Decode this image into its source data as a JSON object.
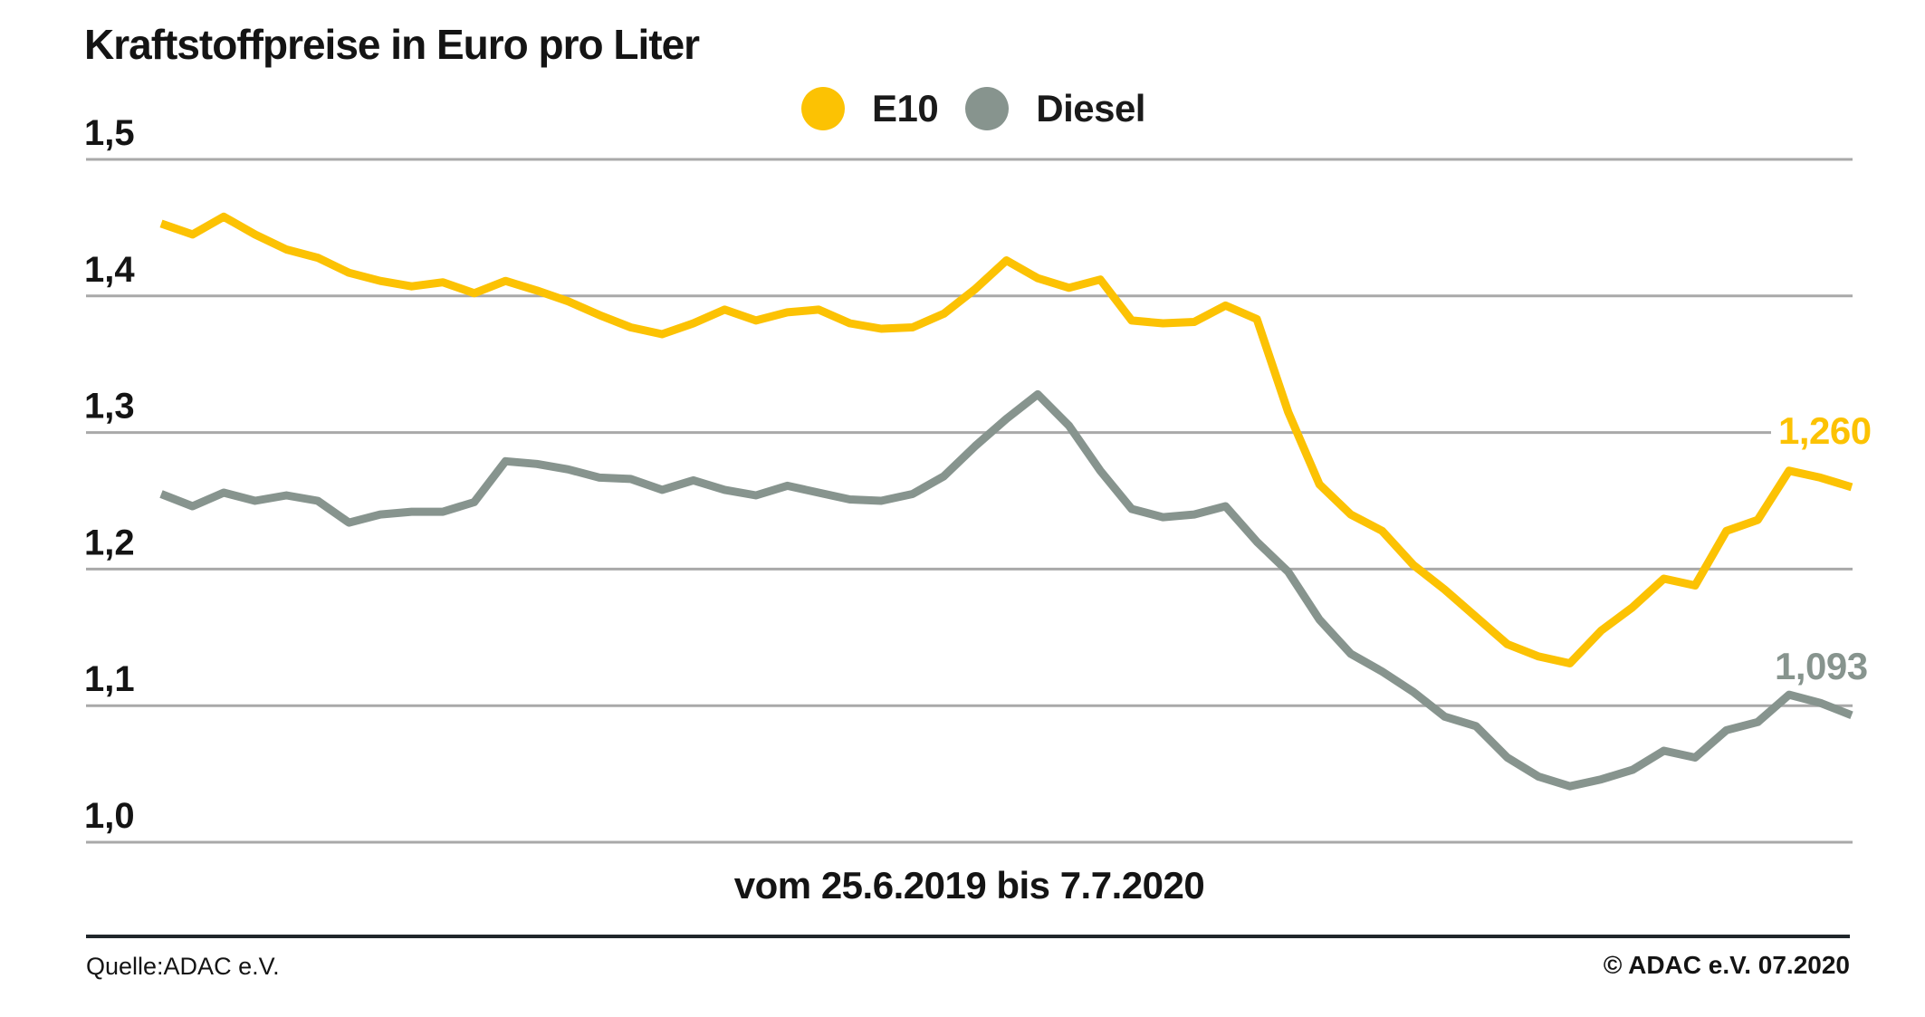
{
  "title": "Kraftstoffpreise in Euro pro Liter",
  "legend": {
    "items": [
      {
        "label": "E10",
        "color": "#FCC203"
      },
      {
        "label": "Diesel",
        "color": "#87948E"
      }
    ]
  },
  "colors": {
    "e10": "#FCC203",
    "diesel": "#87948E",
    "gridline": "#A9A9A9",
    "text": "#141414",
    "footer_rule": "#20262A"
  },
  "chart_data": {
    "type": "line",
    "title": "Kraftstoffpreise in Euro pro Liter",
    "xlabel": "vom 25.6.2019 bis 7.7.2020",
    "ylabel": "",
    "ylim": [
      1.0,
      1.5
    ],
    "grid": true,
    "legend_position": "top-center",
    "yticks": [
      "1,5",
      "1,4",
      "1,3",
      "1,2",
      "1,1",
      "1,0"
    ],
    "ytick_values": [
      1.5,
      1.4,
      1.3,
      1.2,
      1.1,
      1.0
    ],
    "x_start_label": "25.6.2019",
    "x_end_label": "7.7.2020",
    "series": [
      {
        "name": "E10",
        "color": "#FCC203",
        "end_label": "1,260",
        "end_value": 1.26,
        "values": [
          1.453,
          1.445,
          1.458,
          1.445,
          1.434,
          1.428,
          1.417,
          1.411,
          1.407,
          1.41,
          1.402,
          1.411,
          1.404,
          1.396,
          1.386,
          1.377,
          1.372,
          1.38,
          1.39,
          1.382,
          1.388,
          1.39,
          1.38,
          1.376,
          1.377,
          1.387,
          1.405,
          1.426,
          1.413,
          1.406,
          1.412,
          1.382,
          1.38,
          1.381,
          1.393,
          1.383,
          1.315,
          1.262,
          1.24,
          1.228,
          1.203,
          1.185,
          1.165,
          1.145,
          1.136,
          1.131,
          1.155,
          1.172,
          1.193,
          1.188,
          1.228,
          1.236,
          1.272,
          1.267,
          1.26
        ]
      },
      {
        "name": "Diesel",
        "color": "#87948E",
        "end_label": "1,093",
        "end_value": 1.093,
        "values": [
          1.255,
          1.246,
          1.256,
          1.25,
          1.254,
          1.25,
          1.234,
          1.24,
          1.242,
          1.242,
          1.249,
          1.279,
          1.277,
          1.273,
          1.267,
          1.266,
          1.258,
          1.265,
          1.258,
          1.254,
          1.261,
          1.256,
          1.251,
          1.25,
          1.255,
          1.268,
          1.29,
          1.31,
          1.328,
          1.305,
          1.272,
          1.244,
          1.238,
          1.24,
          1.246,
          1.22,
          1.198,
          1.163,
          1.138,
          1.125,
          1.11,
          1.092,
          1.085,
          1.062,
          1.048,
          1.041,
          1.046,
          1.053,
          1.067,
          1.062,
          1.082,
          1.088,
          1.108,
          1.102,
          1.093
        ]
      }
    ]
  },
  "subtitle": "vom 25.6.2019 bis 7.7.2020",
  "footer": {
    "source": "Quelle:ADAC e.V.",
    "copyright": "© ADAC e.V. 07.2020"
  }
}
